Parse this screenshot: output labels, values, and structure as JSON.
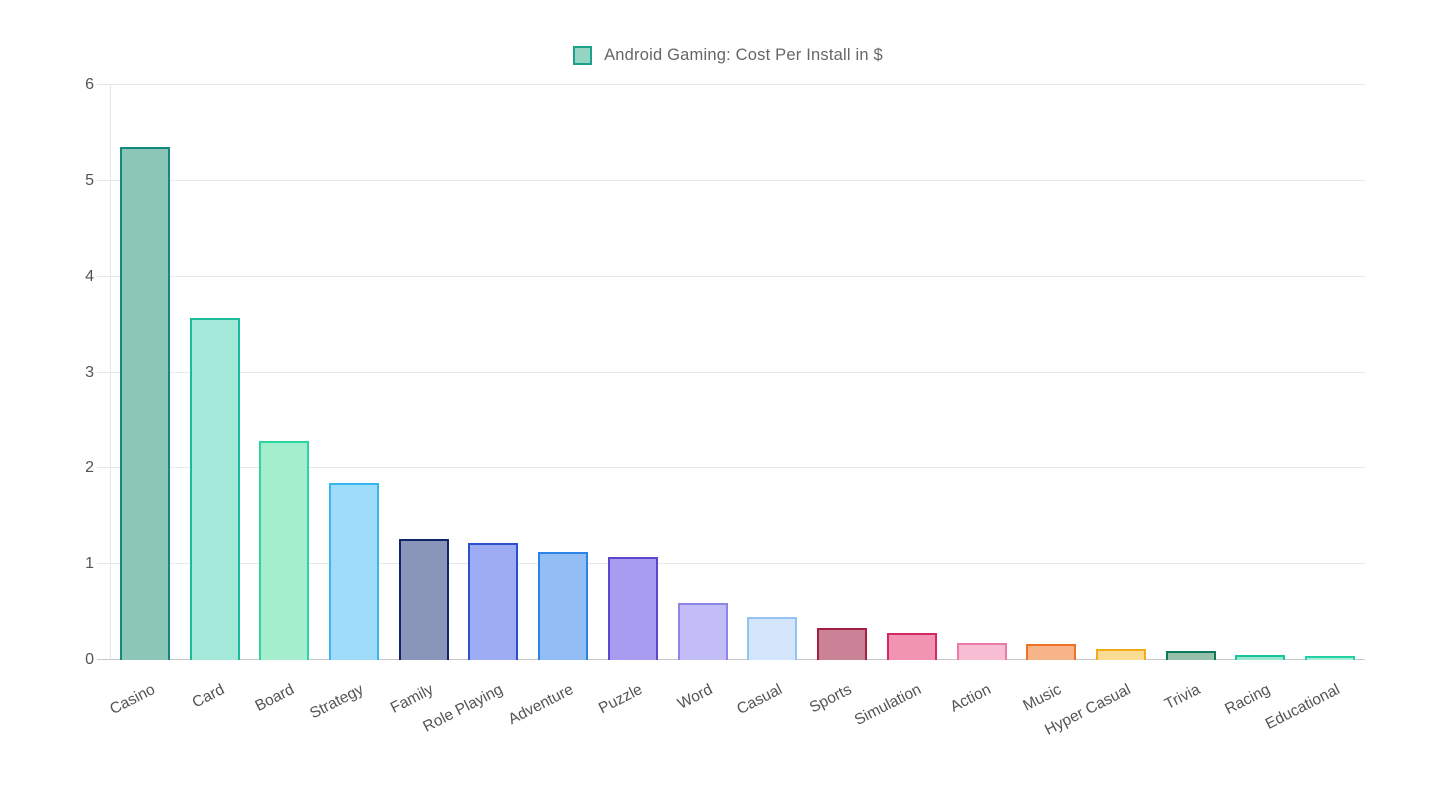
{
  "legend": {
    "label": "Android Gaming: Cost Per Install in $",
    "swatch_fill": "#93d5c2",
    "swatch_border": "#1ba189"
  },
  "chart_data": {
    "type": "bar",
    "title": "Android Gaming: Cost Per Install in $",
    "categories": [
      "Casino",
      "Card",
      "Board",
      "Strategy",
      "Family",
      "Role Playing",
      "Adventure",
      "Puzzle",
      "Word",
      "Casual",
      "Sports",
      "Simulation",
      "Action",
      "Music",
      "Hyper Casual",
      "Trivia",
      "Racing",
      "Educational"
    ],
    "values": [
      5.35,
      3.57,
      2.29,
      1.85,
      1.26,
      1.22,
      1.13,
      1.07,
      0.6,
      0.45,
      0.33,
      0.28,
      0.18,
      0.17,
      0.11,
      0.09,
      0.05,
      0.04
    ],
    "bar_fills": [
      "#8cc6b6",
      "#a3e8d8",
      "#a4eecd",
      "#9edcfa",
      "#8a96b9",
      "#9dacf3",
      "#93bef5",
      "#a89cf1",
      "#c2bdf6",
      "#d4e6fb",
      "#ca8396",
      "#f194b2",
      "#f6bdd3",
      "#f8b58a",
      "#fbdc94",
      "#97c0ab",
      "#9be8d0",
      "#abefdb"
    ],
    "bar_borders": [
      "#12897a",
      "#1abc9c",
      "#2ad5a0",
      "#38b6f0",
      "#10256b",
      "#2b50cf",
      "#2b82e8",
      "#5d46cd",
      "#8d86e9",
      "#92c3f1",
      "#a61e42",
      "#d62765",
      "#ec7aa8",
      "#ef7126",
      "#f0ad17",
      "#0c7a5b",
      "#16c59a",
      "#23d2a4"
    ],
    "xlabel": "",
    "ylabel": "",
    "ylim": [
      0,
      6
    ],
    "yticks": [
      0,
      1,
      2,
      3,
      4,
      5,
      6
    ],
    "grid": "horizontal",
    "legend_position": "top"
  },
  "colors": {
    "background": "#ffffff",
    "gridline": "#e8e8e8",
    "baseline": "#c8c8c8",
    "axis_line": "#e5e5e5",
    "tick_text": "#545454",
    "legend_text": "#666666"
  }
}
